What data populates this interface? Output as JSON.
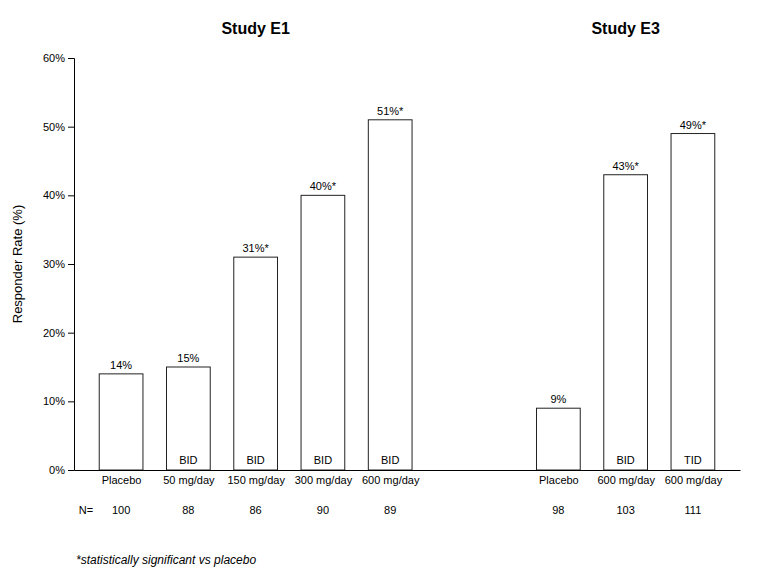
{
  "chart_data": {
    "type": "bar",
    "ylabel": "Responder Rate (%)",
    "color": "#ffffff",
    "data_labels": true,
    "n_label": "N=",
    "footnote": "*statistically significant vs placebo",
    "ylim": [
      0,
      60
    ],
    "yticks": [
      {
        "value": 0,
        "label": "0%"
      },
      {
        "value": 10,
        "label": "10%"
      },
      {
        "value": 20,
        "label": "20%"
      },
      {
        "value": 30,
        "label": "30%"
      },
      {
        "value": 40,
        "label": "40%"
      },
      {
        "value": 50,
        "label": "50%"
      },
      {
        "value": 60,
        "label": "60%"
      }
    ],
    "groups": [
      {
        "title": "Study E1",
        "categories": [
          "Placebo",
          "50 mg/day",
          "150 mg/day",
          "300 mg/day",
          "600 mg/day"
        ],
        "sublabels": [
          null,
          "BID",
          "BID",
          "BID",
          "BID"
        ],
        "values": [
          14,
          15,
          31,
          40,
          51
        ],
        "value_labels": [
          "14%",
          "15%",
          "31%*",
          "40%*",
          "51%*"
        ],
        "n": [
          100,
          88,
          86,
          90,
          89
        ]
      },
      {
        "title": "Study E3",
        "categories": [
          "Placebo",
          "600 mg/day",
          "600 mg/day"
        ],
        "sublabels": [
          null,
          "BID",
          "TID"
        ],
        "values": [
          9,
          43,
          49
        ],
        "value_labels": [
          "9%",
          "43%*",
          "49%*"
        ],
        "n": [
          98,
          103,
          111
        ]
      }
    ]
  }
}
